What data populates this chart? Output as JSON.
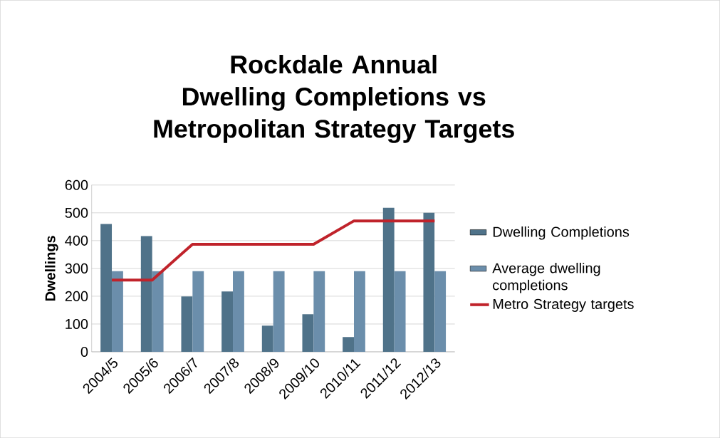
{
  "chart_data": {
    "type": "bar",
    "title": "Rockdale Annual Dwelling Completions vs Metropolitan Strategy Targets",
    "ylabel": "Dwellings",
    "categories": [
      "2004/5",
      "2005/6",
      "2006/7",
      "2007/8",
      "2008/9",
      "2009/10",
      "2010/11",
      "2011/12",
      "2012/13"
    ],
    "series": [
      {
        "name": "Dwelling Completions",
        "color": "#4f7289",
        "values": [
          460,
          416,
          199,
          217,
          94,
          135,
          53,
          518,
          500
        ]
      },
      {
        "name": "Average dwelling completions",
        "color": "#6b8eab",
        "values": [
          290,
          290,
          290,
          290,
          290,
          290,
          290,
          290,
          290
        ]
      },
      {
        "name": "Metro Strategy targets",
        "type": "line",
        "color": "#c0232b",
        "values": [
          258,
          258,
          387,
          387,
          387,
          387,
          471,
          471,
          471
        ]
      }
    ],
    "ylim": [
      0,
      600
    ],
    "yticks": [
      0,
      100,
      200,
      300,
      400,
      500,
      600
    ],
    "grid": "y",
    "legend": "right"
  }
}
